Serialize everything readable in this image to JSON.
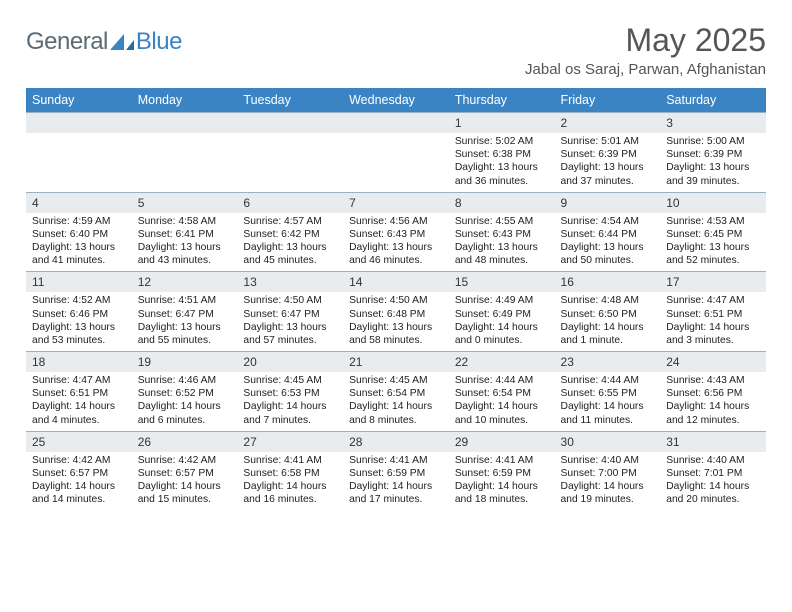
{
  "brand": {
    "part1": "General",
    "part2": "Blue"
  },
  "title": "May 2025",
  "location": "Jabal os Saraj, Parwan, Afghanistan",
  "colors": {
    "header_bg": "#3b84c4",
    "header_text": "#ffffff",
    "daynum_bg": "#e9ecee",
    "border": "#9db0be",
    "brand_gray": "#5a6b76",
    "brand_blue": "#3b84c4"
  },
  "dow": [
    "Sunday",
    "Monday",
    "Tuesday",
    "Wednesday",
    "Thursday",
    "Friday",
    "Saturday"
  ],
  "weeks": [
    {
      "nums": [
        "",
        "",
        "",
        "",
        "1",
        "2",
        "3"
      ],
      "cells": [
        null,
        null,
        null,
        null,
        {
          "sunrise": "Sunrise: 5:02 AM",
          "sunset": "Sunset: 6:38 PM",
          "day1": "Daylight: 13 hours",
          "day2": "and 36 minutes."
        },
        {
          "sunrise": "Sunrise: 5:01 AM",
          "sunset": "Sunset: 6:39 PM",
          "day1": "Daylight: 13 hours",
          "day2": "and 37 minutes."
        },
        {
          "sunrise": "Sunrise: 5:00 AM",
          "sunset": "Sunset: 6:39 PM",
          "day1": "Daylight: 13 hours",
          "day2": "and 39 minutes."
        }
      ]
    },
    {
      "nums": [
        "4",
        "5",
        "6",
        "7",
        "8",
        "9",
        "10"
      ],
      "cells": [
        {
          "sunrise": "Sunrise: 4:59 AM",
          "sunset": "Sunset: 6:40 PM",
          "day1": "Daylight: 13 hours",
          "day2": "and 41 minutes."
        },
        {
          "sunrise": "Sunrise: 4:58 AM",
          "sunset": "Sunset: 6:41 PM",
          "day1": "Daylight: 13 hours",
          "day2": "and 43 minutes."
        },
        {
          "sunrise": "Sunrise: 4:57 AM",
          "sunset": "Sunset: 6:42 PM",
          "day1": "Daylight: 13 hours",
          "day2": "and 45 minutes."
        },
        {
          "sunrise": "Sunrise: 4:56 AM",
          "sunset": "Sunset: 6:43 PM",
          "day1": "Daylight: 13 hours",
          "day2": "and 46 minutes."
        },
        {
          "sunrise": "Sunrise: 4:55 AM",
          "sunset": "Sunset: 6:43 PM",
          "day1": "Daylight: 13 hours",
          "day2": "and 48 minutes."
        },
        {
          "sunrise": "Sunrise: 4:54 AM",
          "sunset": "Sunset: 6:44 PM",
          "day1": "Daylight: 13 hours",
          "day2": "and 50 minutes."
        },
        {
          "sunrise": "Sunrise: 4:53 AM",
          "sunset": "Sunset: 6:45 PM",
          "day1": "Daylight: 13 hours",
          "day2": "and 52 minutes."
        }
      ]
    },
    {
      "nums": [
        "11",
        "12",
        "13",
        "14",
        "15",
        "16",
        "17"
      ],
      "cells": [
        {
          "sunrise": "Sunrise: 4:52 AM",
          "sunset": "Sunset: 6:46 PM",
          "day1": "Daylight: 13 hours",
          "day2": "and 53 minutes."
        },
        {
          "sunrise": "Sunrise: 4:51 AM",
          "sunset": "Sunset: 6:47 PM",
          "day1": "Daylight: 13 hours",
          "day2": "and 55 minutes."
        },
        {
          "sunrise": "Sunrise: 4:50 AM",
          "sunset": "Sunset: 6:47 PM",
          "day1": "Daylight: 13 hours",
          "day2": "and 57 minutes."
        },
        {
          "sunrise": "Sunrise: 4:50 AM",
          "sunset": "Sunset: 6:48 PM",
          "day1": "Daylight: 13 hours",
          "day2": "and 58 minutes."
        },
        {
          "sunrise": "Sunrise: 4:49 AM",
          "sunset": "Sunset: 6:49 PM",
          "day1": "Daylight: 14 hours",
          "day2": "and 0 minutes."
        },
        {
          "sunrise": "Sunrise: 4:48 AM",
          "sunset": "Sunset: 6:50 PM",
          "day1": "Daylight: 14 hours",
          "day2": "and 1 minute."
        },
        {
          "sunrise": "Sunrise: 4:47 AM",
          "sunset": "Sunset: 6:51 PM",
          "day1": "Daylight: 14 hours",
          "day2": "and 3 minutes."
        }
      ]
    },
    {
      "nums": [
        "18",
        "19",
        "20",
        "21",
        "22",
        "23",
        "24"
      ],
      "cells": [
        {
          "sunrise": "Sunrise: 4:47 AM",
          "sunset": "Sunset: 6:51 PM",
          "day1": "Daylight: 14 hours",
          "day2": "and 4 minutes."
        },
        {
          "sunrise": "Sunrise: 4:46 AM",
          "sunset": "Sunset: 6:52 PM",
          "day1": "Daylight: 14 hours",
          "day2": "and 6 minutes."
        },
        {
          "sunrise": "Sunrise: 4:45 AM",
          "sunset": "Sunset: 6:53 PM",
          "day1": "Daylight: 14 hours",
          "day2": "and 7 minutes."
        },
        {
          "sunrise": "Sunrise: 4:45 AM",
          "sunset": "Sunset: 6:54 PM",
          "day1": "Daylight: 14 hours",
          "day2": "and 8 minutes."
        },
        {
          "sunrise": "Sunrise: 4:44 AM",
          "sunset": "Sunset: 6:54 PM",
          "day1": "Daylight: 14 hours",
          "day2": "and 10 minutes."
        },
        {
          "sunrise": "Sunrise: 4:44 AM",
          "sunset": "Sunset: 6:55 PM",
          "day1": "Daylight: 14 hours",
          "day2": "and 11 minutes."
        },
        {
          "sunrise": "Sunrise: 4:43 AM",
          "sunset": "Sunset: 6:56 PM",
          "day1": "Daylight: 14 hours",
          "day2": "and 12 minutes."
        }
      ]
    },
    {
      "nums": [
        "25",
        "26",
        "27",
        "28",
        "29",
        "30",
        "31"
      ],
      "cells": [
        {
          "sunrise": "Sunrise: 4:42 AM",
          "sunset": "Sunset: 6:57 PM",
          "day1": "Daylight: 14 hours",
          "day2": "and 14 minutes."
        },
        {
          "sunrise": "Sunrise: 4:42 AM",
          "sunset": "Sunset: 6:57 PM",
          "day1": "Daylight: 14 hours",
          "day2": "and 15 minutes."
        },
        {
          "sunrise": "Sunrise: 4:41 AM",
          "sunset": "Sunset: 6:58 PM",
          "day1": "Daylight: 14 hours",
          "day2": "and 16 minutes."
        },
        {
          "sunrise": "Sunrise: 4:41 AM",
          "sunset": "Sunset: 6:59 PM",
          "day1": "Daylight: 14 hours",
          "day2": "and 17 minutes."
        },
        {
          "sunrise": "Sunrise: 4:41 AM",
          "sunset": "Sunset: 6:59 PM",
          "day1": "Daylight: 14 hours",
          "day2": "and 18 minutes."
        },
        {
          "sunrise": "Sunrise: 4:40 AM",
          "sunset": "Sunset: 7:00 PM",
          "day1": "Daylight: 14 hours",
          "day2": "and 19 minutes."
        },
        {
          "sunrise": "Sunrise: 4:40 AM",
          "sunset": "Sunset: 7:01 PM",
          "day1": "Daylight: 14 hours",
          "day2": "and 20 minutes."
        }
      ]
    }
  ]
}
